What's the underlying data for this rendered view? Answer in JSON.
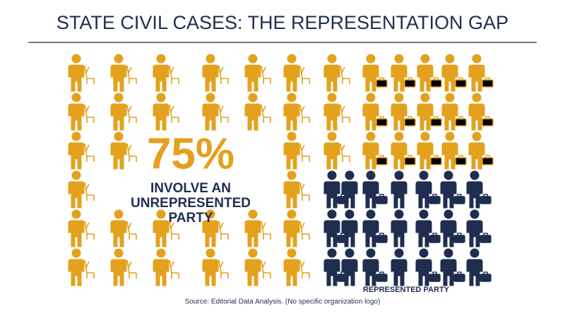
{
  "title": "STATE CIVIL CASES: THE REPRESENTATION GAP",
  "highlight": {
    "stat": "75%",
    "lines": [
      "INVOLVE AN",
      "UNREPRESENTED",
      "PARTY"
    ]
  },
  "legend_label": "REPRESENTED PARTY",
  "source": "Source: Editorial Data Analysis. (No specific organization logo)"
}
